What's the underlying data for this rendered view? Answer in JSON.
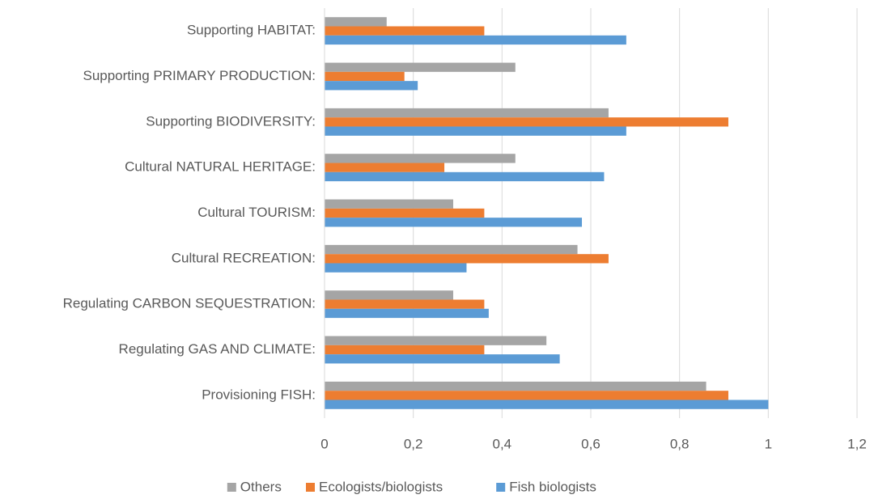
{
  "chart_data": {
    "type": "hbar",
    "categories": [
      "Supporting HABITAT:",
      "Supporting PRIMARY PRODUCTION:",
      "Supporting BIODIVERSITY:",
      "Cultural NATURAL HERITAGE:",
      "Cultural TOURISM:",
      "Cultural RECREATION:",
      "Regulating CARBON SEQUESTRATION:",
      "Regulating GAS AND CLIMATE:",
      "Provisioning FISH:"
    ],
    "series": [
      {
        "name": "Others",
        "color": "#a5a5a5",
        "values": [
          0.14,
          0.43,
          0.64,
          0.43,
          0.29,
          0.57,
          0.29,
          0.5,
          0.86
        ]
      },
      {
        "name": "Ecologists/biologists",
        "color": "#ed7d31",
        "values": [
          0.36,
          0.18,
          0.91,
          0.27,
          0.36,
          0.64,
          0.36,
          0.36,
          0.91
        ]
      },
      {
        "name": "Fish biologists",
        "color": "#5b9bd5",
        "values": [
          0.68,
          0.21,
          0.68,
          0.63,
          0.58,
          0.32,
          0.37,
          0.53,
          1.0
        ]
      }
    ],
    "xlim": [
      0,
      1.2
    ],
    "xticks": [
      0,
      {
        "value": 0.2,
        "label": "0,2"
      },
      {
        "value": 0.4,
        "label": "0,4"
      },
      {
        "value": 0.6,
        "label": "0,6"
      },
      {
        "value": 0.8,
        "label": "0,8"
      },
      1,
      {
        "value": 1.2,
        "label": "1,2"
      }
    ],
    "grid": true,
    "legend": "bottom"
  }
}
